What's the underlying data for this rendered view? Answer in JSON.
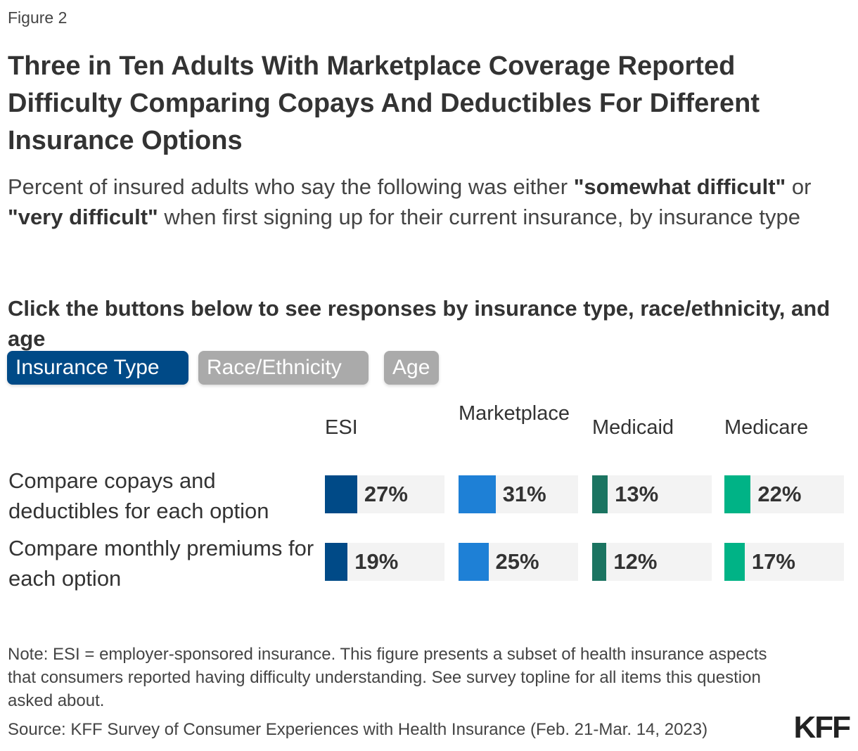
{
  "figure_label": "Figure 2",
  "title": "Three in Ten Adults With Marketplace Coverage Reported Difficulty Comparing Copays And Deductibles For Different Insurance Options",
  "subtitle": {
    "part1": "Percent of insured adults who say the following was either ",
    "bold1": "\"somewhat difficult\"",
    "part2": " or ",
    "bold2": "\"very difficult\"",
    "part3": " when first signing up for their current insurance, by insurance type"
  },
  "prompt": "Click the buttons below to see responses by insurance type, race/ethnicity, and age",
  "buttons": [
    {
      "label": "Insurance Type",
      "active": true,
      "color": "#004a87"
    },
    {
      "label": "Race/Ethnicity",
      "active": false,
      "color": "#aaaaaa"
    },
    {
      "label": "Age",
      "active": false,
      "color": "#aaaaaa"
    }
  ],
  "chart_data": {
    "type": "bar",
    "categories": [
      "Compare copays and deductibles for each option",
      "Compare monthly premiums for each option"
    ],
    "series": [
      {
        "name": "ESI",
        "values": [
          27,
          19
        ],
        "color": "#004a87"
      },
      {
        "name": "Marketplace",
        "values": [
          31,
          25
        ],
        "color": "#1e80d6"
      },
      {
        "name": "Medicaid",
        "values": [
          13,
          12
        ],
        "color": "#1b7461"
      },
      {
        "name": "Medicare",
        "values": [
          22,
          17
        ],
        "color": "#00b386"
      }
    ],
    "value_suffix": "%",
    "xlim": [
      0,
      100
    ]
  },
  "note": "Note: ESI = employer-sponsored insurance. This figure presents a subset of health insurance aspects that consumers reported having difficulty understanding. See survey topline for all items this question asked about.",
  "source": "Source: KFF Survey of Consumer Experiences with Health Insurance (Feb. 21-Mar. 14, 2023)",
  "logo": "KFF"
}
